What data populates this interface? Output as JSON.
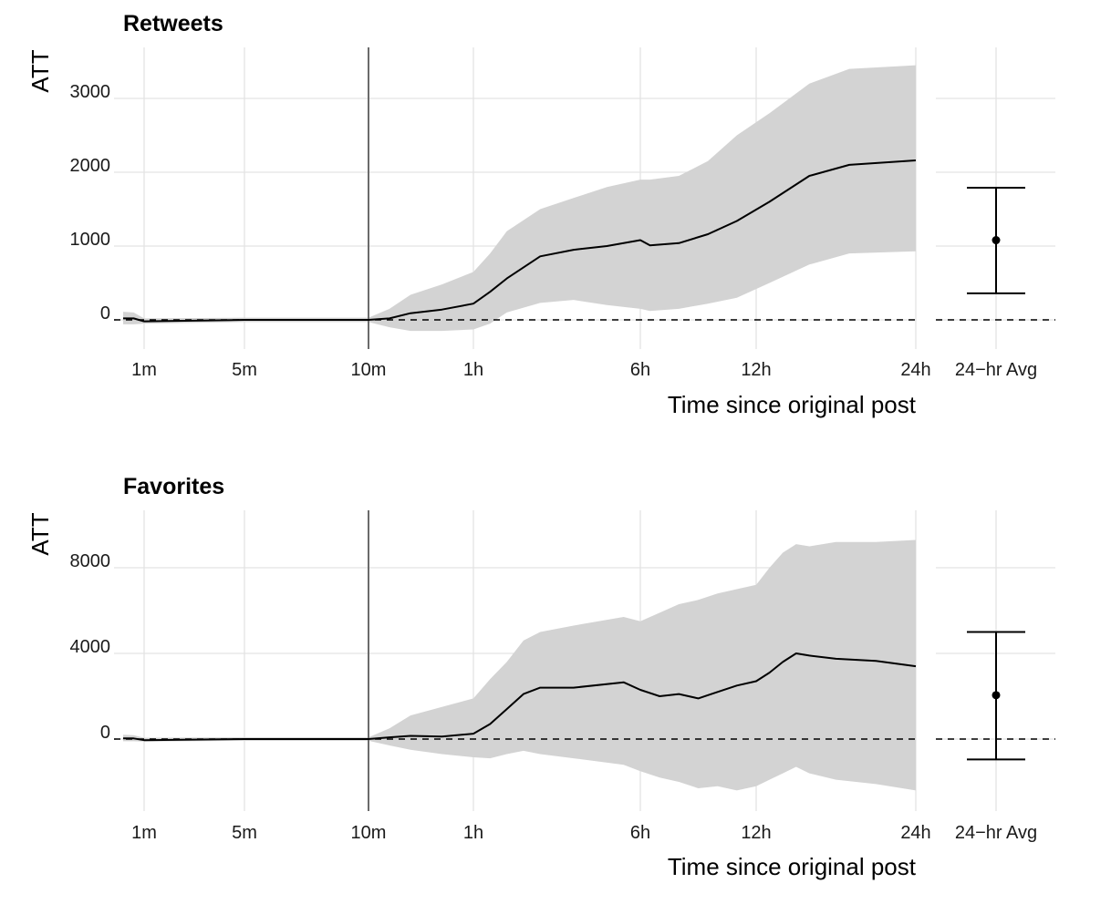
{
  "colors": {
    "grid": "#e3e3e3",
    "ribbon": "#d3d3d3",
    "line": "#000000",
    "vline": "#6b6b6b",
    "zero_line": "#000000"
  },
  "chart_data": [
    {
      "type": "area",
      "title": "Retweets",
      "ylabel": "ATT",
      "xlabel": "Time since original post",
      "x_ticks": [
        "1m",
        "5m",
        "10m",
        "1h",
        "6h",
        "12h",
        "24h"
      ],
      "y_ticks": [
        0,
        1000,
        2000,
        3000
      ],
      "y_tick_labels": [
        "0",
        "1000",
        "2000",
        "3000"
      ],
      "ylim": [
        -420,
        3650
      ],
      "vertical_marker_at": "10m",
      "reference_line_y": 0,
      "grid": true,
      "series": [
        {
          "values": [
            {
              "x": "0m",
              "y": 20,
              "lower": -60,
              "upper": 110
            },
            {
              "x": "0.5m",
              "y": 20,
              "lower": -60,
              "upper": 100
            },
            {
              "x": "1m",
              "y": -20,
              "lower": -50,
              "upper": 20
            },
            {
              "x": "5m",
              "y": 0,
              "lower": -30,
              "upper": 30
            },
            {
              "x": "10m",
              "y": 0,
              "lower": -30,
              "upper": 30
            },
            {
              "x": "20m",
              "y": 20,
              "lower": -100,
              "upper": 150
            },
            {
              "x": "30m",
              "y": 90,
              "lower": -150,
              "upper": 340
            },
            {
              "x": "45m",
              "y": 140,
              "lower": -150,
              "upper": 480
            },
            {
              "x": "1h",
              "y": 220,
              "lower": -130,
              "upper": 650
            },
            {
              "x": "1.5h",
              "y": 380,
              "lower": -50,
              "upper": 900
            },
            {
              "x": "2h",
              "y": 560,
              "lower": 100,
              "upper": 1200
            },
            {
              "x": "3h",
              "y": 860,
              "lower": 230,
              "upper": 1500
            },
            {
              "x": "4h",
              "y": 950,
              "lower": 270,
              "upper": 1650
            },
            {
              "x": "5h",
              "y": 1000,
              "lower": 200,
              "upper": 1800
            },
            {
              "x": "6h",
              "y": 1080,
              "lower": 150,
              "upper": 1900
            },
            {
              "x": "6.5h",
              "y": 1010,
              "lower": 120,
              "upper": 1900
            },
            {
              "x": "8h",
              "y": 1040,
              "lower": 150,
              "upper": 1950
            },
            {
              "x": "9.5h",
              "y": 1160,
              "lower": 220,
              "upper": 2150
            },
            {
              "x": "11h",
              "y": 1340,
              "lower": 300,
              "upper": 2500
            },
            {
              "x": "13h",
              "y": 1600,
              "lower": 500,
              "upper": 2800
            },
            {
              "x": "16h",
              "y": 1950,
              "lower": 750,
              "upper": 3200
            },
            {
              "x": "19h",
              "y": 2100,
              "lower": 900,
              "upper": 3400
            },
            {
              "x": "24h",
              "y": 2160,
              "lower": 930,
              "upper": 3450
            }
          ]
        }
      ],
      "summary_panel": {
        "label": "24−hr Avg",
        "mean": 1080,
        "lower": 360,
        "upper": 1790
      }
    },
    {
      "type": "area",
      "title": "Favorites",
      "ylabel": "ATT",
      "xlabel": "Time since original post",
      "x_ticks": [
        "1m",
        "5m",
        "10m",
        "1h",
        "6h",
        "12h",
        "24h"
      ],
      "y_ticks": [
        0,
        4000,
        8000
      ],
      "y_tick_labels": [
        "0",
        "4000",
        "8000"
      ],
      "ylim": [
        -3300,
        10700
      ],
      "vertical_marker_at": "10m",
      "reference_line_y": 0,
      "grid": true,
      "series": [
        {
          "values": [
            {
              "x": "0m",
              "y": 30,
              "lower": -100,
              "upper": 200
            },
            {
              "x": "0.5m",
              "y": 30,
              "lower": -100,
              "upper": 180
            },
            {
              "x": "1m",
              "y": -50,
              "lower": -120,
              "upper": 60
            },
            {
              "x": "5m",
              "y": 0,
              "lower": -80,
              "upper": 80
            },
            {
              "x": "10m",
              "y": 0,
              "lower": -80,
              "upper": 80
            },
            {
              "x": "20m",
              "y": 80,
              "lower": -300,
              "upper": 500
            },
            {
              "x": "30m",
              "y": 150,
              "lower": -500,
              "upper": 1100
            },
            {
              "x": "45m",
              "y": 120,
              "lower": -700,
              "upper": 1500
            },
            {
              "x": "1h",
              "y": 250,
              "lower": -850,
              "upper": 1900
            },
            {
              "x": "1.5h",
              "y": 700,
              "lower": -900,
              "upper": 2800
            },
            {
              "x": "2h",
              "y": 1400,
              "lower": -700,
              "upper": 3600
            },
            {
              "x": "2.5h",
              "y": 2100,
              "lower": -550,
              "upper": 4600
            },
            {
              "x": "3h",
              "y": 2400,
              "lower": -700,
              "upper": 5000
            },
            {
              "x": "4h",
              "y": 2400,
              "lower": -900,
              "upper": 5300
            },
            {
              "x": "5.5h",
              "y": 2650,
              "lower": -1200,
              "upper": 5700
            },
            {
              "x": "6h",
              "y": 2300,
              "lower": -1500,
              "upper": 5500
            },
            {
              "x": "7h",
              "y": 2000,
              "lower": -1800,
              "upper": 5900
            },
            {
              "x": "8h",
              "y": 2100,
              "lower": -2000,
              "upper": 6300
            },
            {
              "x": "9h",
              "y": 1900,
              "lower": -2300,
              "upper": 6500
            },
            {
              "x": "10h",
              "y": 2200,
              "lower": -2200,
              "upper": 6800
            },
            {
              "x": "11h",
              "y": 2500,
              "lower": -2400,
              "upper": 7000
            },
            {
              "x": "12h",
              "y": 2700,
              "lower": -2200,
              "upper": 7200
            },
            {
              "x": "13h",
              "y": 3100,
              "lower": -1900,
              "upper": 8000
            },
            {
              "x": "14h",
              "y": 3600,
              "lower": -1600,
              "upper": 8700
            },
            {
              "x": "15h",
              "y": 4000,
              "lower": -1300,
              "upper": 9100
            },
            {
              "x": "16h",
              "y": 3900,
              "lower": -1600,
              "upper": 9000
            },
            {
              "x": "18h",
              "y": 3750,
              "lower": -1900,
              "upper": 9200
            },
            {
              "x": "21h",
              "y": 3650,
              "lower": -2100,
              "upper": 9200
            },
            {
              "x": "24h",
              "y": 3400,
              "lower": -2400,
              "upper": 9300
            }
          ]
        }
      ],
      "summary_panel": {
        "label": "24−hr Avg",
        "mean": 2050,
        "lower": -950,
        "upper": 5000
      }
    }
  ]
}
